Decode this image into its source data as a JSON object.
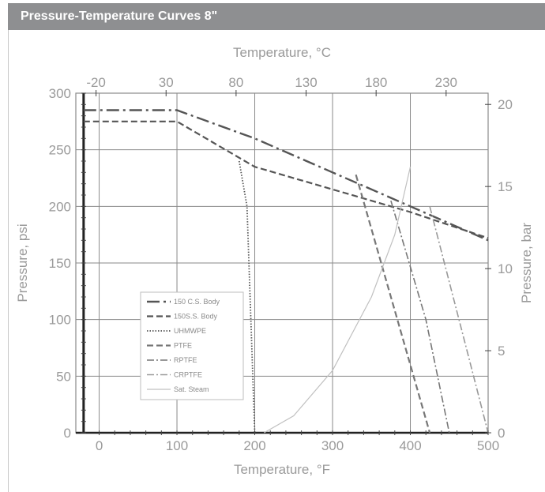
{
  "header": {
    "title": "Pressure-Temperature Curves  8\""
  },
  "chart_data": {
    "type": "line",
    "title": "Pressure-Temperature Curves  8\"",
    "xlabel": "Temperature, °F",
    "ylabel": "Pressure, psi",
    "x2label": "Temperature, °C",
    "y2label": "Pressure, bar",
    "xlim": [
      -30,
      500
    ],
    "ylim": [
      0,
      300
    ],
    "x_ticks": [
      0,
      100,
      200,
      300,
      400,
      500
    ],
    "y_ticks": [
      0,
      50,
      100,
      150,
      200,
      250,
      300
    ],
    "x2_ticks": [
      -20,
      30,
      80,
      130,
      180,
      230
    ],
    "y2_ticks": [
      0,
      5,
      10,
      15,
      20
    ],
    "grid": true,
    "legend_position": "lower-left",
    "series": [
      {
        "name": "150 C.S. Body",
        "style": "longdash-dot",
        "color": "#555555",
        "x": [
          -20,
          100,
          200,
          300,
          400,
          500
        ],
        "y": [
          285,
          285,
          260,
          230,
          200,
          170
        ]
      },
      {
        "name": "150S.S. Body",
        "style": "dashed",
        "color": "#555555",
        "x": [
          -20,
          100,
          200,
          300,
          400,
          500
        ],
        "y": [
          275,
          275,
          235,
          215,
          195,
          172
        ]
      },
      {
        "name": "UHMWPE",
        "style": "dotted",
        "color": "#555555",
        "x": [
          180,
          190,
          200
        ],
        "y": [
          240,
          200,
          0
        ]
      },
      {
        "name": "PTFE",
        "style": "dashed",
        "color": "#777777",
        "x": [
          330,
          400,
          425
        ],
        "y": [
          228,
          60,
          0
        ]
      },
      {
        "name": "RPTFE",
        "style": "dash-dot",
        "color": "#777777",
        "x": [
          375,
          420,
          450
        ],
        "y": [
          205,
          100,
          0
        ]
      },
      {
        "name": "CRPTFE",
        "style": "dash-dot",
        "color": "#999999",
        "x": [
          425,
          470,
          500
        ],
        "y": [
          200,
          80,
          0
        ]
      },
      {
        "name": "Sat. Steam",
        "style": "solid",
        "color": "#c0c0c0",
        "x": [
          212,
          250,
          300,
          350,
          380,
          400
        ],
        "y": [
          0,
          15,
          55,
          120,
          175,
          235
        ]
      }
    ]
  }
}
